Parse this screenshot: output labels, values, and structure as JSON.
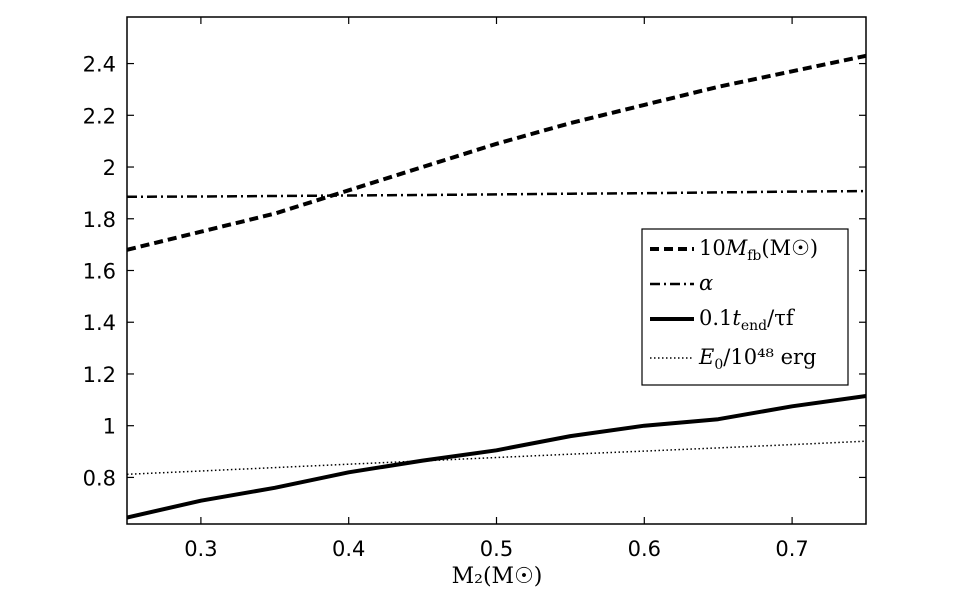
{
  "chart_data": {
    "type": "line",
    "xlabel": "M₂(M☉)",
    "ylabel": "",
    "title": "",
    "xlim": [
      0.25,
      0.75
    ],
    "ylim": [
      0.62,
      2.58
    ],
    "xticks": [
      0.3,
      0.4,
      0.5,
      0.6,
      0.7
    ],
    "xtick_labels": [
      "0.3",
      "0.4",
      "0.5",
      "0.6",
      "0.7"
    ],
    "yticks": [
      0.8,
      1.0,
      1.2,
      1.4,
      1.6,
      1.8,
      2.0,
      2.2,
      2.4
    ],
    "ytick_labels": [
      "0.8",
      "1",
      "1.2",
      "1.4",
      "1.6",
      "1.8",
      "2",
      "2.2",
      "2.4"
    ],
    "grid": false,
    "legend_position": "center-right",
    "series": [
      {
        "name": "10M_fb(M☉)",
        "style": "dashed",
        "x": [
          0.25,
          0.3,
          0.35,
          0.4,
          0.45,
          0.5,
          0.55,
          0.6,
          0.65,
          0.7,
          0.75
        ],
        "y": [
          1.68,
          1.75,
          1.82,
          1.91,
          2.0,
          2.09,
          2.17,
          2.24,
          2.31,
          2.37,
          2.43
        ]
      },
      {
        "name": "α",
        "style": "dashdot",
        "x": [
          0.25,
          0.3,
          0.35,
          0.4,
          0.45,
          0.5,
          0.55,
          0.6,
          0.65,
          0.7,
          0.75
        ],
        "y": [
          1.885,
          1.886,
          1.888,
          1.89,
          1.892,
          1.894,
          1.897,
          1.899,
          1.902,
          1.905,
          1.907
        ]
      },
      {
        "name": "0.1t_end/τ_f",
        "style": "solid",
        "x": [
          0.25,
          0.3,
          0.35,
          0.4,
          0.45,
          0.5,
          0.55,
          0.6,
          0.65,
          0.7,
          0.75
        ],
        "y": [
          0.645,
          0.71,
          0.76,
          0.82,
          0.865,
          0.905,
          0.96,
          1.0,
          1.025,
          1.075,
          1.115
        ]
      },
      {
        "name": "E₀/10⁴⁸ erg",
        "style": "dotted",
        "x": [
          0.25,
          0.3,
          0.35,
          0.4,
          0.45,
          0.5,
          0.55,
          0.6,
          0.65,
          0.7,
          0.75
        ],
        "y": [
          0.812,
          0.825,
          0.838,
          0.851,
          0.864,
          0.877,
          0.89,
          0.902,
          0.914,
          0.927,
          0.94
        ]
      }
    ],
    "legend_labels": [
      {
        "base": "10",
        "var": "M",
        "sub": "fb",
        "rest": "(M☉)"
      },
      {
        "base": "",
        "var": "α",
        "sub": "",
        "rest": ""
      },
      {
        "base": "0.1",
        "var": "t",
        "sub": "end",
        "rest": "/τf"
      },
      {
        "base": "",
        "var": "E",
        "sub": "0",
        "rest": "/10⁴⁸ erg"
      }
    ]
  }
}
